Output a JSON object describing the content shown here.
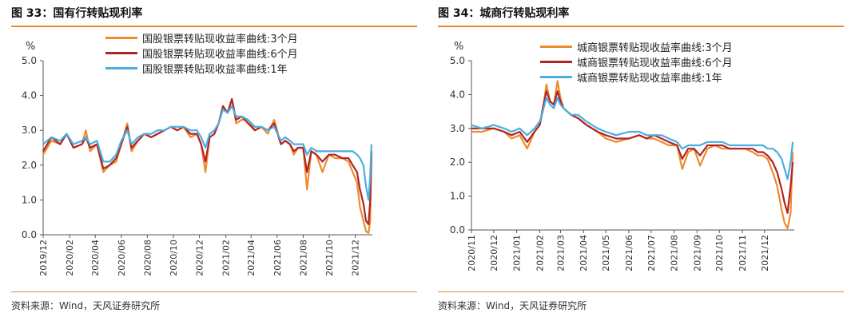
{
  "panels": [
    {
      "title": "图 33：国有行转贴现利率",
      "source": "资料来源：Wind，天风证券研究所",
      "unit": "%"
    },
    {
      "title": "图 34：城商行转贴现利率",
      "source": "资料来源：Wind，天风证券研究所",
      "unit": "%"
    }
  ],
  "chart_data": [
    {
      "type": "line",
      "ylabel": "%",
      "ylim": [
        0,
        5
      ],
      "yticks": [
        "0.0",
        "1.0",
        "2.0",
        "3.0",
        "4.0",
        "5.0"
      ],
      "xlim": [
        "2019-12-01",
        "2022-01-10"
      ],
      "xticks": [
        "2019/12",
        "2020/02",
        "2020/04",
        "2020/06",
        "2020/08",
        "2020/10",
        "2020/12",
        "2021/02",
        "2021/04",
        "2021/06",
        "2021/08",
        "2021/10",
        "2021/12"
      ],
      "xtick_dates": [
        "2019-12-01",
        "2020-02-01",
        "2020-04-01",
        "2020-06-01",
        "2020-08-01",
        "2020-10-01",
        "2020-12-01",
        "2021-02-01",
        "2021-04-01",
        "2021-06-01",
        "2021-08-01",
        "2021-10-01",
        "2021-12-01"
      ],
      "legend_position": "top",
      "grid": false,
      "series": [
        {
          "name": "国股银票转贴现收益率曲线:3个月",
          "color": "#ed8b2e",
          "x": [
            "2019-12-01",
            "2019-12-20",
            "2020-01-10",
            "2020-01-25",
            "2020-02-10",
            "2020-03-01",
            "2020-03-10",
            "2020-03-20",
            "2020-04-05",
            "2020-04-20",
            "2020-05-05",
            "2020-05-20",
            "2020-06-01",
            "2020-06-15",
            "2020-06-25",
            "2020-07-10",
            "2020-07-25",
            "2020-08-10",
            "2020-08-25",
            "2020-09-10",
            "2020-09-25",
            "2020-10-10",
            "2020-10-25",
            "2020-11-10",
            "2020-11-25",
            "2020-12-05",
            "2020-12-15",
            "2020-12-25",
            "2021-01-05",
            "2021-01-15",
            "2021-01-25",
            "2021-02-05",
            "2021-02-15",
            "2021-02-25",
            "2021-03-10",
            "2021-03-25",
            "2021-04-10",
            "2021-04-25",
            "2021-05-10",
            "2021-05-25",
            "2021-06-10",
            "2021-06-20",
            "2021-07-01",
            "2021-07-10",
            "2021-07-20",
            "2021-08-01",
            "2021-08-10",
            "2021-08-20",
            "2021-09-01",
            "2021-09-15",
            "2021-09-30",
            "2021-10-15",
            "2021-11-01",
            "2021-11-15",
            "2021-11-25",
            "2021-12-05",
            "2021-12-12",
            "2021-12-20",
            "2021-12-26",
            "2022-01-01",
            "2022-01-05",
            "2022-01-08"
          ],
          "values": [
            2.3,
            2.7,
            2.6,
            2.9,
            2.5,
            2.6,
            3.0,
            2.4,
            2.6,
            1.8,
            2.0,
            2.1,
            2.6,
            3.2,
            2.4,
            2.7,
            2.9,
            2.8,
            2.9,
            3.0,
            3.1,
            3.0,
            3.1,
            2.8,
            2.9,
            2.6,
            1.8,
            2.8,
            2.9,
            3.2,
            3.6,
            3.5,
            3.9,
            3.2,
            3.3,
            3.3,
            3.0,
            3.1,
            2.9,
            3.3,
            2.6,
            2.7,
            2.6,
            2.3,
            2.5,
            2.5,
            1.3,
            2.4,
            2.3,
            1.8,
            2.3,
            2.2,
            2.2,
            2.1,
            1.8,
            1.5,
            0.8,
            0.4,
            0.1,
            0.05,
            0.4,
            2.4
          ]
        },
        {
          "name": "国股银票转贴现收益率曲线:6个月",
          "color": "#b22424",
          "x": [
            "2019-12-01",
            "2019-12-20",
            "2020-01-10",
            "2020-01-25",
            "2020-02-10",
            "2020-03-01",
            "2020-03-10",
            "2020-03-20",
            "2020-04-05",
            "2020-04-20",
            "2020-05-05",
            "2020-05-20",
            "2020-06-01",
            "2020-06-15",
            "2020-06-25",
            "2020-07-10",
            "2020-07-25",
            "2020-08-10",
            "2020-08-25",
            "2020-09-10",
            "2020-09-25",
            "2020-10-10",
            "2020-10-25",
            "2020-11-10",
            "2020-11-25",
            "2020-12-05",
            "2020-12-15",
            "2020-12-25",
            "2021-01-05",
            "2021-01-15",
            "2021-01-25",
            "2021-02-05",
            "2021-02-15",
            "2021-02-25",
            "2021-03-10",
            "2021-03-25",
            "2021-04-10",
            "2021-04-25",
            "2021-05-10",
            "2021-05-25",
            "2021-06-10",
            "2021-06-20",
            "2021-07-01",
            "2021-07-10",
            "2021-07-20",
            "2021-08-01",
            "2021-08-10",
            "2021-08-20",
            "2021-09-01",
            "2021-09-15",
            "2021-09-30",
            "2021-10-15",
            "2021-11-01",
            "2021-11-15",
            "2021-11-25",
            "2021-12-05",
            "2021-12-12",
            "2021-12-20",
            "2021-12-26",
            "2022-01-01",
            "2022-01-05",
            "2022-01-08"
          ],
          "values": [
            2.4,
            2.8,
            2.6,
            2.9,
            2.5,
            2.6,
            2.8,
            2.5,
            2.6,
            1.9,
            2.0,
            2.2,
            2.6,
            3.1,
            2.5,
            2.7,
            2.9,
            2.8,
            2.9,
            3.0,
            3.1,
            3.0,
            3.1,
            2.9,
            2.9,
            2.6,
            2.1,
            2.8,
            2.9,
            3.2,
            3.7,
            3.5,
            3.9,
            3.3,
            3.4,
            3.2,
            3.0,
            3.1,
            3.0,
            3.2,
            2.6,
            2.7,
            2.6,
            2.4,
            2.5,
            2.5,
            1.8,
            2.4,
            2.3,
            2.1,
            2.3,
            2.3,
            2.2,
            2.2,
            2.0,
            1.8,
            1.3,
            0.9,
            0.4,
            0.3,
            1.0,
            2.4
          ]
        },
        {
          "name": "国股银票转贴现收益率曲线:1年",
          "color": "#49aee3",
          "x": [
            "2019-12-01",
            "2019-12-20",
            "2020-01-10",
            "2020-01-25",
            "2020-02-10",
            "2020-03-01",
            "2020-03-10",
            "2020-03-20",
            "2020-04-05",
            "2020-04-20",
            "2020-05-05",
            "2020-05-20",
            "2020-06-01",
            "2020-06-15",
            "2020-06-25",
            "2020-07-10",
            "2020-07-25",
            "2020-08-10",
            "2020-08-25",
            "2020-09-10",
            "2020-09-25",
            "2020-10-10",
            "2020-10-25",
            "2020-11-10",
            "2020-11-25",
            "2020-12-05",
            "2020-12-15",
            "2020-12-25",
            "2021-01-05",
            "2021-01-15",
            "2021-01-25",
            "2021-02-05",
            "2021-02-15",
            "2021-02-25",
            "2021-03-10",
            "2021-03-25",
            "2021-04-10",
            "2021-04-25",
            "2021-05-10",
            "2021-05-25",
            "2021-06-10",
            "2021-06-20",
            "2021-07-01",
            "2021-07-10",
            "2021-07-20",
            "2021-08-01",
            "2021-08-10",
            "2021-08-20",
            "2021-09-01",
            "2021-09-15",
            "2021-09-30",
            "2021-10-15",
            "2021-11-01",
            "2021-11-15",
            "2021-11-25",
            "2021-12-05",
            "2021-12-12",
            "2021-12-20",
            "2021-12-26",
            "2022-01-01",
            "2022-01-05",
            "2022-01-08"
          ],
          "values": [
            2.6,
            2.8,
            2.7,
            2.9,
            2.6,
            2.7,
            2.8,
            2.6,
            2.7,
            2.1,
            2.1,
            2.3,
            2.7,
            3.0,
            2.6,
            2.8,
            2.9,
            2.9,
            3.0,
            3.0,
            3.1,
            3.1,
            3.1,
            3.0,
            3.0,
            2.8,
            2.5,
            2.9,
            3.0,
            3.2,
            3.6,
            3.5,
            3.7,
            3.4,
            3.4,
            3.3,
            3.1,
            3.1,
            3.0,
            3.1,
            2.7,
            2.8,
            2.7,
            2.6,
            2.6,
            2.6,
            2.3,
            2.5,
            2.4,
            2.4,
            2.4,
            2.4,
            2.4,
            2.4,
            2.4,
            2.3,
            2.2,
            2.0,
            1.4,
            1.0,
            1.7,
            2.6
          ]
        }
      ]
    },
    {
      "type": "line",
      "ylabel": "%",
      "ylim": [
        0,
        5
      ],
      "yticks": [
        "0.0",
        "1.0",
        "2.0",
        "3.0",
        "4.0",
        "5.0"
      ],
      "xlim": [
        "2020-11-01",
        "2022-01-10"
      ],
      "xticks": [
        "2020/11",
        "2020/12",
        "2021/01",
        "2021/02",
        "2021/03",
        "2021/04",
        "2021/05",
        "2021/06",
        "2021/07",
        "2021/08",
        "2021/09",
        "2021/10",
        "2021/11",
        "2021/12"
      ],
      "xtick_dates": [
        "2020-11-01",
        "2020-12-01",
        "2021-01-01",
        "2021-02-01",
        "2021-03-01",
        "2021-04-01",
        "2021-05-01",
        "2021-06-01",
        "2021-07-01",
        "2021-08-01",
        "2021-09-01",
        "2021-10-01",
        "2021-11-01",
        "2021-12-01"
      ],
      "legend_position": "top",
      "grid": false,
      "series": [
        {
          "name": "城商银票转贴现收益率曲线:3个月",
          "color": "#ed8b2e",
          "x": [
            "2020-11-01",
            "2020-11-15",
            "2020-12-01",
            "2020-12-15",
            "2020-12-25",
            "2021-01-05",
            "2021-01-15",
            "2021-01-25",
            "2021-02-01",
            "2021-02-05",
            "2021-02-10",
            "2021-02-15",
            "2021-02-20",
            "2021-02-25",
            "2021-03-01",
            "2021-03-05",
            "2021-03-15",
            "2021-03-25",
            "2021-04-05",
            "2021-04-20",
            "2021-05-01",
            "2021-05-15",
            "2021-06-01",
            "2021-06-15",
            "2021-06-25",
            "2021-07-05",
            "2021-07-15",
            "2021-07-25",
            "2021-08-05",
            "2021-08-12",
            "2021-08-20",
            "2021-08-28",
            "2021-09-05",
            "2021-09-15",
            "2021-09-25",
            "2021-10-05",
            "2021-10-15",
            "2021-10-25",
            "2021-11-05",
            "2021-11-15",
            "2021-11-22",
            "2021-11-29",
            "2021-12-05",
            "2021-12-12",
            "2021-12-18",
            "2021-12-24",
            "2021-12-28",
            "2022-01-01",
            "2022-01-05",
            "2022-01-08"
          ],
          "values": [
            2.9,
            2.9,
            3.0,
            2.9,
            2.7,
            2.8,
            2.4,
            2.9,
            3.1,
            3.5,
            4.3,
            3.8,
            3.7,
            4.4,
            3.9,
            3.6,
            3.4,
            3.3,
            3.1,
            2.9,
            2.7,
            2.6,
            2.7,
            2.8,
            2.7,
            2.7,
            2.6,
            2.5,
            2.5,
            1.8,
            2.3,
            2.4,
            1.9,
            2.4,
            2.5,
            2.4,
            2.4,
            2.4,
            2.4,
            2.3,
            2.2,
            2.2,
            2.1,
            1.7,
            1.3,
            0.6,
            0.2,
            0.05,
            0.5,
            2.3
          ]
        },
        {
          "name": "城商银票转贴现收益率曲线:6个月",
          "color": "#b22424",
          "x": [
            "2020-11-01",
            "2020-11-15",
            "2020-12-01",
            "2020-12-15",
            "2020-12-25",
            "2021-01-05",
            "2021-01-15",
            "2021-01-25",
            "2021-02-01",
            "2021-02-05",
            "2021-02-10",
            "2021-02-15",
            "2021-02-20",
            "2021-02-25",
            "2021-03-01",
            "2021-03-05",
            "2021-03-15",
            "2021-03-25",
            "2021-04-05",
            "2021-04-20",
            "2021-05-01",
            "2021-05-15",
            "2021-06-01",
            "2021-06-15",
            "2021-06-25",
            "2021-07-05",
            "2021-07-15",
            "2021-07-25",
            "2021-08-05",
            "2021-08-12",
            "2021-08-20",
            "2021-08-28",
            "2021-09-05",
            "2021-09-15",
            "2021-09-25",
            "2021-10-05",
            "2021-10-15",
            "2021-10-25",
            "2021-11-05",
            "2021-11-15",
            "2021-11-22",
            "2021-11-29",
            "2021-12-05",
            "2021-12-12",
            "2021-12-18",
            "2021-12-24",
            "2021-12-28",
            "2022-01-01",
            "2022-01-05",
            "2022-01-08"
          ],
          "values": [
            3.0,
            3.0,
            3.0,
            2.9,
            2.8,
            2.9,
            2.6,
            2.9,
            3.1,
            3.6,
            4.1,
            3.8,
            3.7,
            4.1,
            3.8,
            3.6,
            3.4,
            3.3,
            3.1,
            2.9,
            2.8,
            2.7,
            2.7,
            2.8,
            2.7,
            2.8,
            2.7,
            2.6,
            2.5,
            2.1,
            2.4,
            2.4,
            2.2,
            2.5,
            2.5,
            2.5,
            2.4,
            2.4,
            2.4,
            2.4,
            2.3,
            2.3,
            2.2,
            2.0,
            1.7,
            1.2,
            0.8,
            0.5,
            1.3,
            2.0
          ]
        },
        {
          "name": "城商银票转贴现收益率曲线:1年",
          "color": "#49aee3",
          "x": [
            "2020-11-01",
            "2020-11-15",
            "2020-12-01",
            "2020-12-15",
            "2020-12-25",
            "2021-01-05",
            "2021-01-15",
            "2021-01-25",
            "2021-02-01",
            "2021-02-05",
            "2021-02-10",
            "2021-02-15",
            "2021-02-20",
            "2021-02-25",
            "2021-03-01",
            "2021-03-05",
            "2021-03-15",
            "2021-03-25",
            "2021-04-05",
            "2021-04-20",
            "2021-05-01",
            "2021-05-15",
            "2021-06-01",
            "2021-06-15",
            "2021-06-25",
            "2021-07-05",
            "2021-07-15",
            "2021-07-25",
            "2021-08-05",
            "2021-08-12",
            "2021-08-20",
            "2021-08-28",
            "2021-09-05",
            "2021-09-15",
            "2021-09-25",
            "2021-10-05",
            "2021-10-15",
            "2021-10-25",
            "2021-11-05",
            "2021-11-15",
            "2021-11-22",
            "2021-11-29",
            "2021-12-05",
            "2021-12-12",
            "2021-12-18",
            "2021-12-24",
            "2021-12-28",
            "2022-01-01",
            "2022-01-05",
            "2022-01-08"
          ],
          "values": [
            3.1,
            3.0,
            3.1,
            3.0,
            2.9,
            3.0,
            2.8,
            3.0,
            3.2,
            3.5,
            3.9,
            3.7,
            3.6,
            3.9,
            3.7,
            3.6,
            3.4,
            3.4,
            3.2,
            3.0,
            2.9,
            2.8,
            2.9,
            2.9,
            2.8,
            2.8,
            2.8,
            2.7,
            2.6,
            2.4,
            2.5,
            2.5,
            2.5,
            2.6,
            2.6,
            2.6,
            2.5,
            2.5,
            2.5,
            2.5,
            2.5,
            2.5,
            2.4,
            2.4,
            2.3,
            2.1,
            1.8,
            1.5,
            2.0,
            2.6
          ]
        }
      ]
    }
  ]
}
